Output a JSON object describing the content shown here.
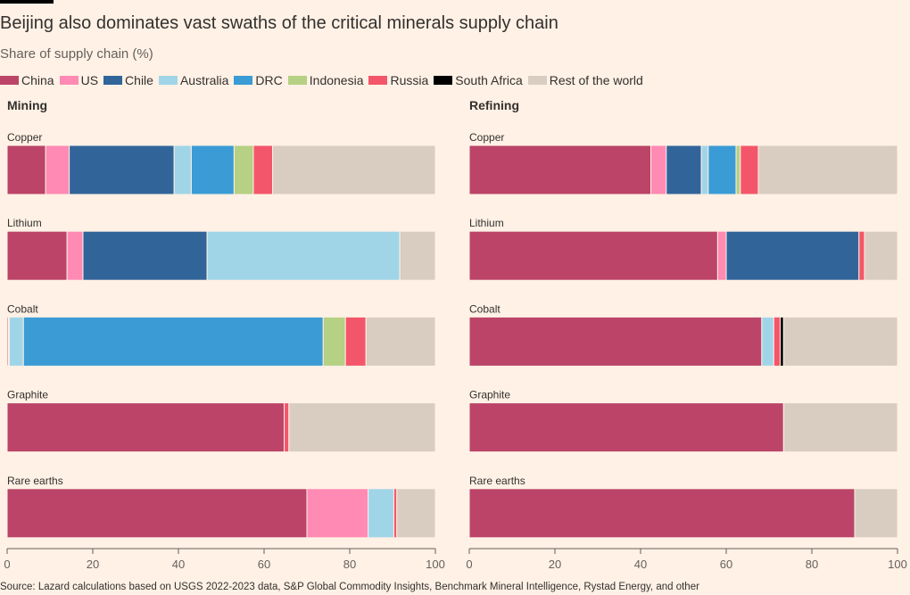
{
  "title": "Beijing also dominates vast swaths of the critical minerals supply chain",
  "subtitle": "Share of supply chain (%)",
  "legend": [
    {
      "name": "China",
      "color": "#bb4468"
    },
    {
      "name": "US",
      "color": "#ff8ab4"
    },
    {
      "name": "Chile",
      "color": "#31659a"
    },
    {
      "name": "Australia",
      "color": "#a0d5e8"
    },
    {
      "name": "DRC",
      "color": "#3a9bd5"
    },
    {
      "name": "Indonesia",
      "color": "#b6d084"
    },
    {
      "name": "Russia",
      "color": "#f3566a"
    },
    {
      "name": "South Africa",
      "color": "#000000"
    },
    {
      "name": "Rest of the world",
      "color": "#d9ccc1"
    }
  ],
  "source": "Source: Lazard calculations based on USGS 2022-2023 data, S&P Global Commodity Insights, Benchmark Mineral Intelligence, Rystad Energy, and other",
  "chart_data": [
    {
      "type": "bar",
      "orientation": "horizontal",
      "stacked": true,
      "title": "Mining",
      "xlim": [
        0,
        100
      ],
      "xticks": [
        "0",
        "20",
        "40",
        "60",
        "80",
        "100"
      ],
      "categories": [
        "Copper",
        "Lithium",
        "Cobalt",
        "Graphite",
        "Rare earths"
      ],
      "series": [
        {
          "name": "China",
          "values": [
            9,
            14,
            0.3,
            64.7,
            70
          ]
        },
        {
          "name": "US",
          "values": [
            5.5,
            3.7,
            0.2,
            0,
            14.3
          ]
        },
        {
          "name": "Chile",
          "values": [
            24.5,
            29,
            0,
            0,
            0
          ]
        },
        {
          "name": "Australia",
          "values": [
            4,
            45,
            3.3,
            0,
            6
          ]
        },
        {
          "name": "DRC",
          "values": [
            10,
            0,
            70,
            0,
            0
          ]
        },
        {
          "name": "Indonesia",
          "values": [
            4.5,
            0,
            5.2,
            0,
            0
          ]
        },
        {
          "name": "Russia",
          "values": [
            4.5,
            0,
            4.8,
            1.1,
            0.7
          ]
        },
        {
          "name": "South Africa",
          "values": [
            0,
            0,
            0,
            0,
            0
          ]
        },
        {
          "name": "Rest of the world",
          "values": [
            38,
            8.3,
            16.2,
            34.2,
            9
          ]
        }
      ]
    },
    {
      "type": "bar",
      "orientation": "horizontal",
      "stacked": true,
      "title": "Refining",
      "xlim": [
        0,
        100
      ],
      "xticks": [
        "0",
        "20",
        "40",
        "60",
        "80",
        "100"
      ],
      "categories": [
        "Copper",
        "Lithium",
        "Cobalt",
        "Graphite",
        "Rare earths"
      ],
      "series": [
        {
          "name": "China",
          "values": [
            42.4,
            58,
            68.3,
            73.4,
            90
          ]
        },
        {
          "name": "US",
          "values": [
            3.6,
            2,
            0,
            0,
            0
          ]
        },
        {
          "name": "Chile",
          "values": [
            8.2,
            31,
            0,
            0,
            0
          ]
        },
        {
          "name": "Australia",
          "values": [
            1.6,
            0,
            2.8,
            0,
            0
          ]
        },
        {
          "name": "DRC",
          "values": [
            6.5,
            0,
            0,
            0,
            0
          ]
        },
        {
          "name": "Indonesia",
          "values": [
            1,
            0,
            0,
            0,
            0
          ]
        },
        {
          "name": "Russia",
          "values": [
            4.2,
            1.3,
            1.5,
            0,
            0
          ]
        },
        {
          "name": "South Africa",
          "values": [
            0,
            0,
            0.8,
            0,
            0
          ]
        },
        {
          "name": "Rest of the world",
          "values": [
            32.5,
            7.7,
            26.6,
            26.6,
            10
          ]
        }
      ]
    }
  ]
}
